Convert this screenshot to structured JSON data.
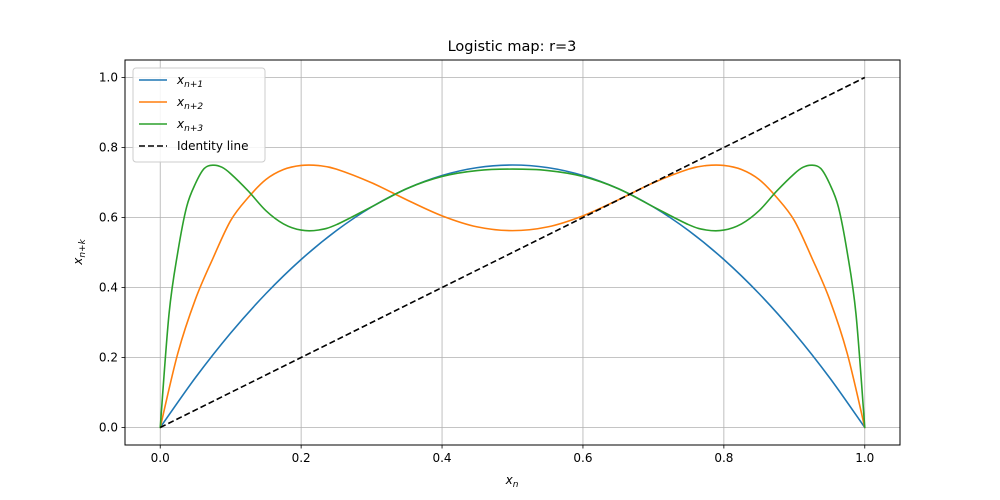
{
  "chart_data": {
    "type": "line",
    "title": "Logistic map: r=3",
    "xlabel": "x",
    "xlabel_sub": "n",
    "ylabel": "x",
    "ylabel_sub": "n+k",
    "xlim": [
      -0.05,
      1.05
    ],
    "ylim": [
      -0.05,
      1.05
    ],
    "xticks": [
      0.0,
      0.2,
      0.4,
      0.6,
      0.8,
      1.0
    ],
    "yticks": [
      0.0,
      0.2,
      0.4,
      0.6,
      0.8,
      1.0
    ],
    "xtick_labels": [
      "0.0",
      "0.2",
      "0.4",
      "0.6",
      "0.8",
      "1.0"
    ],
    "ytick_labels": [
      "0.0",
      "0.2",
      "0.4",
      "0.6",
      "0.8",
      "1.0"
    ],
    "grid": true,
    "legend_position": "top-left",
    "r": 3,
    "series": [
      {
        "name": "x",
        "name_sub": "n+1",
        "color": "#1f77b4",
        "style": "solid",
        "x": [
          0.0,
          0.05,
          0.1,
          0.15,
          0.2,
          0.25,
          0.3,
          0.35,
          0.4,
          0.45,
          0.5,
          0.55,
          0.6,
          0.65,
          0.7,
          0.75,
          0.8,
          0.85,
          0.9,
          0.95,
          1.0
        ],
        "y": [
          0.0,
          0.1425,
          0.27,
          0.3825,
          0.48,
          0.5625,
          0.63,
          0.6825,
          0.72,
          0.7425,
          0.75,
          0.7425,
          0.72,
          0.6825,
          0.63,
          0.5625,
          0.48,
          0.3825,
          0.27,
          0.1425,
          0.0
        ]
      },
      {
        "name": "x",
        "name_sub": "n+2",
        "color": "#ff7f0e",
        "style": "solid",
        "x": [
          0.0,
          0.025,
          0.05,
          0.075,
          0.1,
          0.125,
          0.15,
          0.175,
          0.2,
          0.225,
          0.25,
          0.3,
          0.35,
          0.4,
          0.45,
          0.5,
          0.55,
          0.6,
          0.65,
          0.7,
          0.75,
          0.775,
          0.8,
          0.825,
          0.85,
          0.875,
          0.9,
          0.925,
          0.95,
          0.975,
          1.0
        ],
        "y": [
          0.0,
          0.2124,
          0.3666,
          0.4842,
          0.5913,
          0.6574,
          0.7086,
          0.7372,
          0.7488,
          0.7484,
          0.7383,
          0.6993,
          0.6504,
          0.6048,
          0.5732,
          0.5625,
          0.5732,
          0.6048,
          0.6504,
          0.6993,
          0.7383,
          0.7484,
          0.7488,
          0.7372,
          0.7086,
          0.6574,
          0.5913,
          0.4842,
          0.3666,
          0.2124,
          0.0
        ]
      },
      {
        "name": "x",
        "name_sub": "n+3",
        "color": "#2ca02c",
        "style": "solid",
        "x": [
          0.0,
          0.0125,
          0.025,
          0.0375,
          0.05,
          0.0625,
          0.075,
          0.0875,
          0.1,
          0.125,
          0.15,
          0.175,
          0.2,
          0.225,
          0.25,
          0.3,
          0.35,
          0.4,
          0.45,
          0.5,
          0.55,
          0.6,
          0.65,
          0.7,
          0.75,
          0.775,
          0.8,
          0.825,
          0.85,
          0.875,
          0.9,
          0.9125,
          0.925,
          0.9375,
          0.95,
          0.9625,
          0.975,
          0.9875,
          1.0
        ],
        "y": [
          0.0,
          0.3245,
          0.5017,
          0.6306,
          0.6969,
          0.7401,
          0.7495,
          0.7437,
          0.7251,
          0.6755,
          0.6195,
          0.5817,
          0.564,
          0.5643,
          0.5795,
          0.6306,
          0.6826,
          0.7173,
          0.7342,
          0.7383,
          0.7342,
          0.7173,
          0.6826,
          0.6306,
          0.5795,
          0.5643,
          0.564,
          0.5817,
          0.6195,
          0.6755,
          0.7251,
          0.7437,
          0.7495,
          0.7401,
          0.6969,
          0.6306,
          0.5017,
          0.3245,
          0.0
        ]
      },
      {
        "name": "Identity line",
        "color": "#000000",
        "style": "dashed",
        "x": [
          0.0,
          1.0
        ],
        "y": [
          0.0,
          1.0
        ]
      }
    ]
  }
}
